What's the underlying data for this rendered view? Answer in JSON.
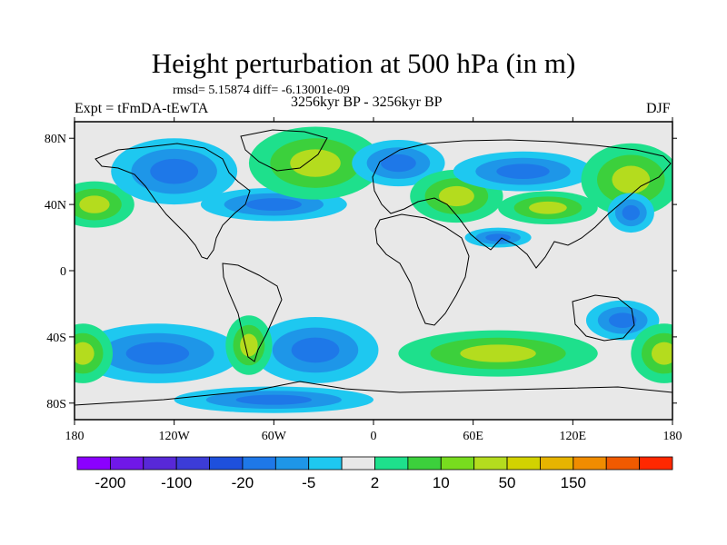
{
  "title": "Height perturbation at 500 hPa (in m)",
  "stats": "rmsd= 5.15874 diff= -6.13001e-09",
  "experiment": "Expt = tFmDA-tEwTA",
  "period": "3256kyr BP - 3256kyr BP",
  "season": "DJF",
  "map": {
    "lon_range": [
      -180,
      180
    ],
    "lat_range": [
      -90,
      90
    ],
    "lon_ticks": [
      {
        "value": -180,
        "label": "180"
      },
      {
        "value": -120,
        "label": "120W"
      },
      {
        "value": -60,
        "label": "60W"
      },
      {
        "value": 0,
        "label": "0"
      },
      {
        "value": 60,
        "label": "60E"
      },
      {
        "value": 120,
        "label": "120E"
      },
      {
        "value": 180,
        "label": "180"
      }
    ],
    "lat_ticks": [
      {
        "value": 80,
        "label": "80N"
      },
      {
        "value": 40,
        "label": "40N"
      },
      {
        "value": 0,
        "label": "0"
      },
      {
        "value": -40,
        "label": "40S"
      },
      {
        "value": -80,
        "label": "80S"
      }
    ],
    "background_color": "#e8e8e8",
    "anomalies": [
      {
        "lon": -168,
        "lat": 40,
        "rx": 24,
        "ry": 14,
        "sign": 1
      },
      {
        "lon": -120,
        "lat": 60,
        "rx": 38,
        "ry": 20,
        "sign": -1
      },
      {
        "lon": -60,
        "lat": 40,
        "rx": 44,
        "ry": 10,
        "sign": -1
      },
      {
        "lon": -35,
        "lat": 65,
        "rx": 40,
        "ry": 22,
        "sign": 1
      },
      {
        "lon": 15,
        "lat": 65,
        "rx": 28,
        "ry": 14,
        "sign": -1
      },
      {
        "lon": 50,
        "lat": 45,
        "rx": 28,
        "ry": 16,
        "sign": 1
      },
      {
        "lon": 90,
        "lat": 60,
        "rx": 42,
        "ry": 12,
        "sign": -1
      },
      {
        "lon": 155,
        "lat": 55,
        "rx": 30,
        "ry": 22,
        "sign": 1
      },
      {
        "lon": 105,
        "lat": 38,
        "rx": 30,
        "ry": 10,
        "sign": 1
      },
      {
        "lon": 155,
        "lat": 35,
        "rx": 14,
        "ry": 12,
        "sign": -1
      },
      {
        "lon": 75,
        "lat": 20,
        "rx": 20,
        "ry": 6,
        "sign": -1
      },
      {
        "lon": -130,
        "lat": -50,
        "rx": 50,
        "ry": 18,
        "sign": -1
      },
      {
        "lon": -175,
        "lat": -50,
        "rx": 18,
        "ry": 18,
        "sign": 1
      },
      {
        "lon": -35,
        "lat": -48,
        "rx": 38,
        "ry": 20,
        "sign": -1
      },
      {
        "lon": -75,
        "lat": -45,
        "rx": 14,
        "ry": 18,
        "sign": 1
      },
      {
        "lon": 75,
        "lat": -50,
        "rx": 60,
        "ry": 14,
        "sign": 1
      },
      {
        "lon": 150,
        "lat": -30,
        "rx": 22,
        "ry": 12,
        "sign": -1
      },
      {
        "lon": 175,
        "lat": -50,
        "rx": 20,
        "ry": 18,
        "sign": 1
      },
      {
        "lon": -60,
        "lat": -78,
        "rx": 60,
        "ry": 8,
        "sign": -1
      }
    ]
  },
  "colorbar": {
    "colors": [
      "#8b00ff",
      "#7018e8",
      "#5828d8",
      "#3c3cd8",
      "#1e50dc",
      "#1e78e8",
      "#1e96e8",
      "#1ec8f0",
      "#e8e8e8",
      "#1ee08c",
      "#3cd03c",
      "#78dc1e",
      "#b4dc1e",
      "#d2d200",
      "#e6b400",
      "#f08c00",
      "#f05a00",
      "#ff2800"
    ],
    "labels": [
      {
        "text": "-200",
        "index": 1
      },
      {
        "text": "-100",
        "index": 3
      },
      {
        "text": "-20",
        "index": 5
      },
      {
        "text": "-5",
        "index": 7
      },
      {
        "text": "2",
        "index": 9
      },
      {
        "text": "10",
        "index": 11
      },
      {
        "text": "50",
        "index": 13
      },
      {
        "text": "150",
        "index": 15
      }
    ]
  }
}
